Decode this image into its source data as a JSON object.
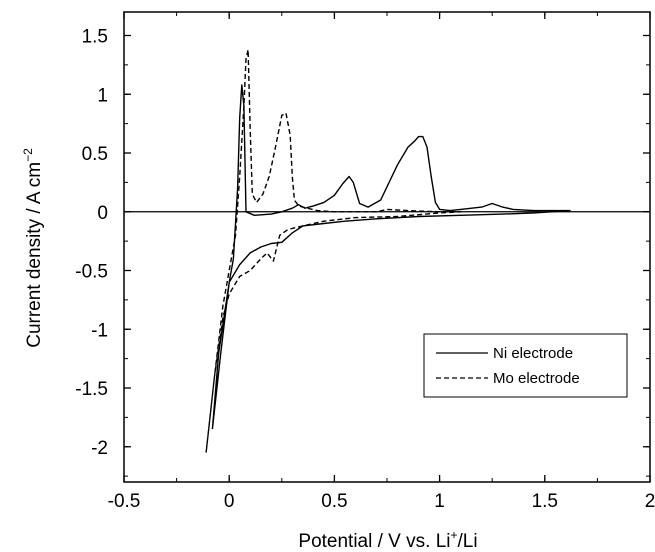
{
  "chart_data": {
    "type": "line",
    "xlabel": {
      "main": "Potential / V vs. Li",
      "sup": "+",
      "tail": "/Li"
    },
    "ylabel": {
      "main": "Current density / A cm",
      "sup": "−2"
    },
    "xlim": [
      -0.5,
      2
    ],
    "ylim": [
      -2.3,
      1.7
    ],
    "xticks": [
      -0.5,
      0,
      0.5,
      1,
      1.5,
      2
    ],
    "xtick_labels": [
      "-0.5",
      "0",
      "0.5",
      "1",
      "1.5",
      "2"
    ],
    "yticks": [
      -2,
      -1.5,
      -1,
      -0.5,
      0,
      0.5,
      1,
      1.5
    ],
    "ytick_labels": [
      "-2",
      "-1.5",
      "-1",
      "-0.5",
      "0",
      "0.5",
      "1",
      "1.5"
    ],
    "grid": false,
    "zero_line": true,
    "legend_position": "bottom-right",
    "series": [
      {
        "name": "Ni electrode",
        "style": "solid",
        "color": "#000000",
        "x": [
          -0.08,
          -0.04,
          0.0,
          0.02,
          0.04,
          0.05,
          0.06,
          0.07,
          0.08,
          0.12,
          0.2,
          0.25,
          0.3,
          0.33,
          0.36,
          0.4,
          0.45,
          0.5,
          0.54,
          0.57,
          0.59,
          0.62,
          0.66,
          0.72,
          0.8,
          0.85,
          0.88,
          0.9,
          0.92,
          0.94,
          0.96,
          0.98,
          1.0,
          1.05,
          1.1,
          1.2,
          1.25,
          1.3,
          1.35,
          1.45,
          1.55,
          1.62,
          1.45,
          1.3,
          1.1,
          0.9,
          0.7,
          0.55,
          0.45,
          0.35,
          0.3,
          0.25,
          0.2,
          0.15,
          0.1,
          0.05,
          0.0,
          -0.05,
          -0.08
        ],
        "y": [
          -1.85,
          -1.2,
          -0.6,
          -0.4,
          0.2,
          0.8,
          1.08,
          0.9,
          0.0,
          -0.03,
          -0.02,
          0.0,
          0.03,
          0.06,
          0.03,
          0.05,
          0.08,
          0.14,
          0.24,
          0.3,
          0.25,
          0.07,
          0.04,
          0.1,
          0.4,
          0.55,
          0.6,
          0.64,
          0.64,
          0.55,
          0.3,
          0.08,
          0.02,
          0.01,
          0.02,
          0.04,
          0.07,
          0.04,
          0.02,
          0.01,
          0.01,
          0.01,
          -0.01,
          -0.02,
          -0.03,
          -0.04,
          -0.06,
          -0.08,
          -0.1,
          -0.12,
          -0.18,
          -0.26,
          -0.27,
          -0.3,
          -0.35,
          -0.45,
          -0.6,
          -1.2,
          -1.85
        ]
      },
      {
        "name": "Mo electrode",
        "style": "dashed",
        "color": "#000000",
        "x": [
          -0.11,
          -0.07,
          -0.03,
          0.0,
          0.03,
          0.05,
          0.07,
          0.08,
          0.09,
          0.1,
          0.11,
          0.13,
          0.16,
          0.19,
          0.22,
          0.25,
          0.27,
          0.29,
          0.3,
          0.31,
          0.33,
          0.37,
          0.42,
          0.5,
          0.6,
          0.7,
          0.75,
          0.85,
          1.0,
          1.1,
          1.0,
          0.8,
          0.6,
          0.45,
          0.35,
          0.28,
          0.24,
          0.21,
          0.18,
          0.15,
          0.1,
          0.05,
          0.0,
          -0.03,
          -0.07,
          -0.11
        ],
        "y": [
          -2.05,
          -1.4,
          -0.8,
          -0.5,
          -0.2,
          0.3,
          0.9,
          1.3,
          1.38,
          0.7,
          0.15,
          0.08,
          0.15,
          0.3,
          0.55,
          0.82,
          0.84,
          0.65,
          0.3,
          0.1,
          0.05,
          0.03,
          0.01,
          0.0,
          0.0,
          0.0,
          0.02,
          0.01,
          0.0,
          0.0,
          -0.01,
          -0.04,
          -0.05,
          -0.08,
          -0.12,
          -0.15,
          -0.2,
          -0.42,
          -0.35,
          -0.4,
          -0.5,
          -0.55,
          -0.7,
          -0.9,
          -1.4,
          -2.05
        ]
      }
    ]
  }
}
